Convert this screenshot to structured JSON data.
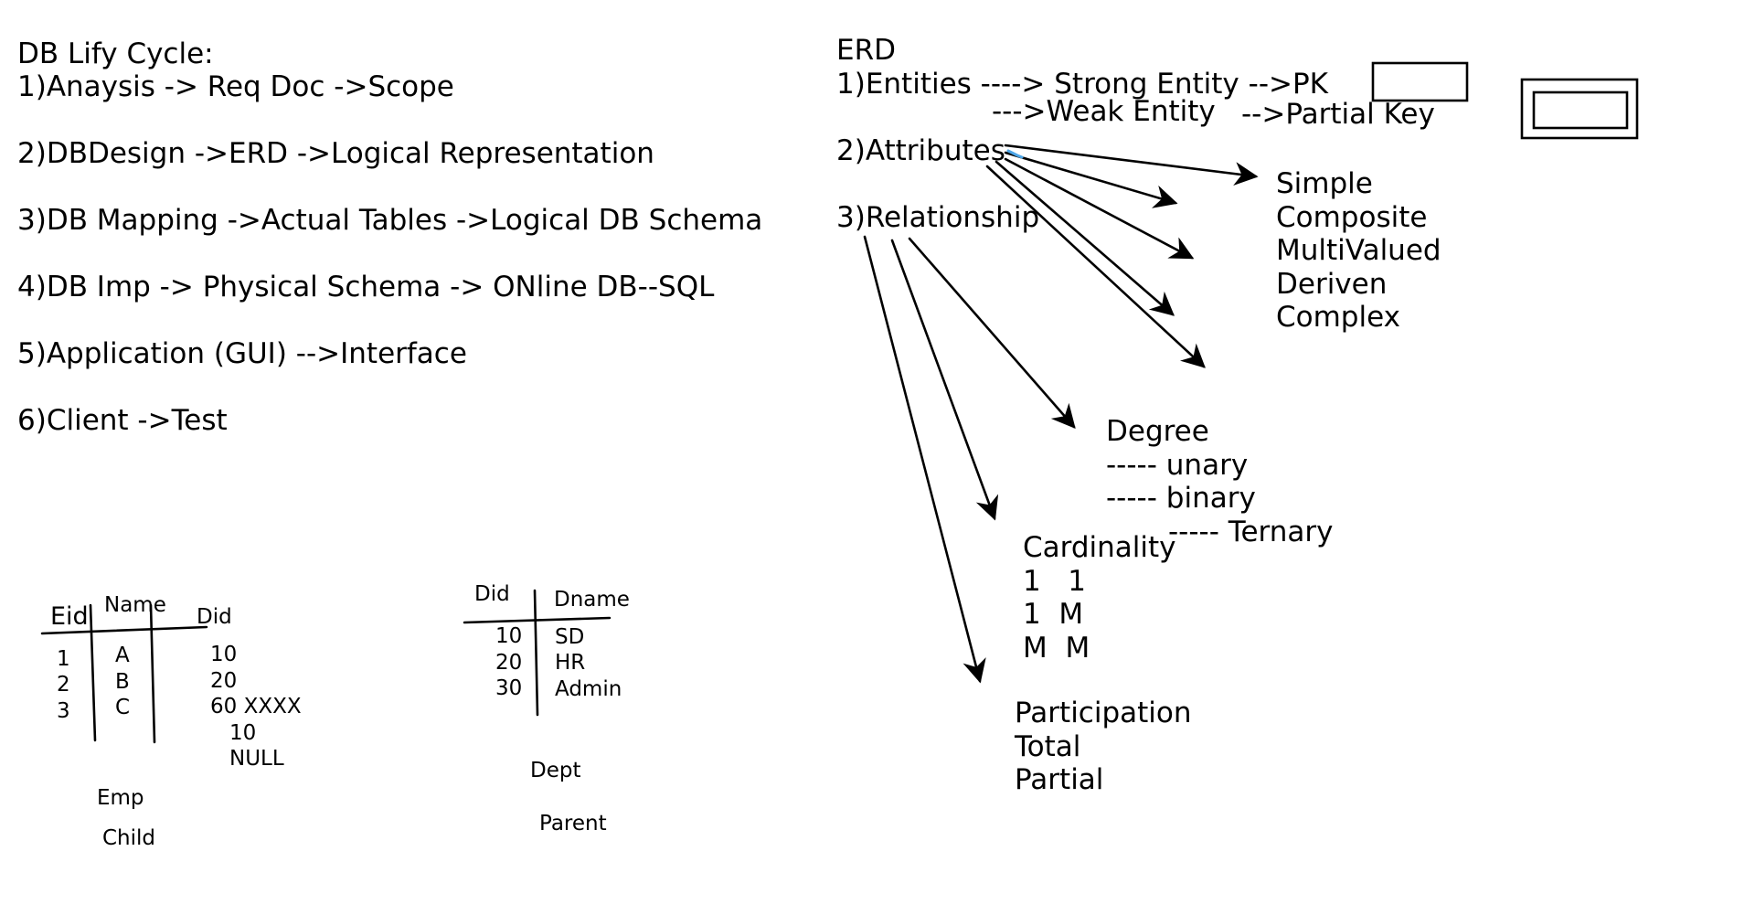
{
  "lifecycle": {
    "title": "DB Lify Cycle:",
    "steps": [
      "1)Anaysis -> Req Doc ->Scope",
      "2)DBDesign ->ERD ->Logical Representation",
      "3)DB Mapping ->Actual Tables ->Logical DB Schema",
      "4)DB Imp -> Physical Schema -> ONline DB--SQL",
      "5)Application (GUI) -->Interface",
      "6)Client ->Test"
    ]
  },
  "erd": {
    "title": "ERD",
    "entities": {
      "label": "1)Entities ----> Strong Entity -->PK",
      "weak": "--->Weak Entity",
      "partial_key": "-->Partial Key"
    },
    "attributes": {
      "label": "2)Attributes",
      "types": [
        "Simple",
        "Composite",
        "MultiValued",
        "Deriven",
        "Complex"
      ]
    },
    "relationship": {
      "label": "3)Relationship",
      "degree": {
        "title": "Degree",
        "items": [
          "----- unary",
          "----- binary",
          "----- Ternary"
        ]
      },
      "cardinality": {
        "title": "Cardinality",
        "rows": [
          "1   1",
          "1  M",
          "M  M"
        ]
      },
      "participation": {
        "title": "Participation",
        "items": [
          "Total",
          "Partial"
        ]
      }
    }
  },
  "emp_table": {
    "headers": [
      "Eid",
      "Name",
      "Did"
    ],
    "eids": [
      "1",
      "2",
      "3"
    ],
    "names": [
      "A",
      "B",
      "C"
    ],
    "dids": [
      "10",
      "20",
      "60 XXXX"
    ],
    "extra_dids": [
      "10",
      "NULL"
    ],
    "caption": "Emp",
    "role": "Child"
  },
  "dept_table": {
    "headers": [
      "Did",
      "Dname"
    ],
    "dids": [
      "10",
      "20",
      "30"
    ],
    "names": [
      "SD",
      "HR",
      "Admin"
    ],
    "caption": "Dept",
    "role": "Parent"
  },
  "colors": {
    "ink": "#000000",
    "highlight": "#4da6e8"
  }
}
